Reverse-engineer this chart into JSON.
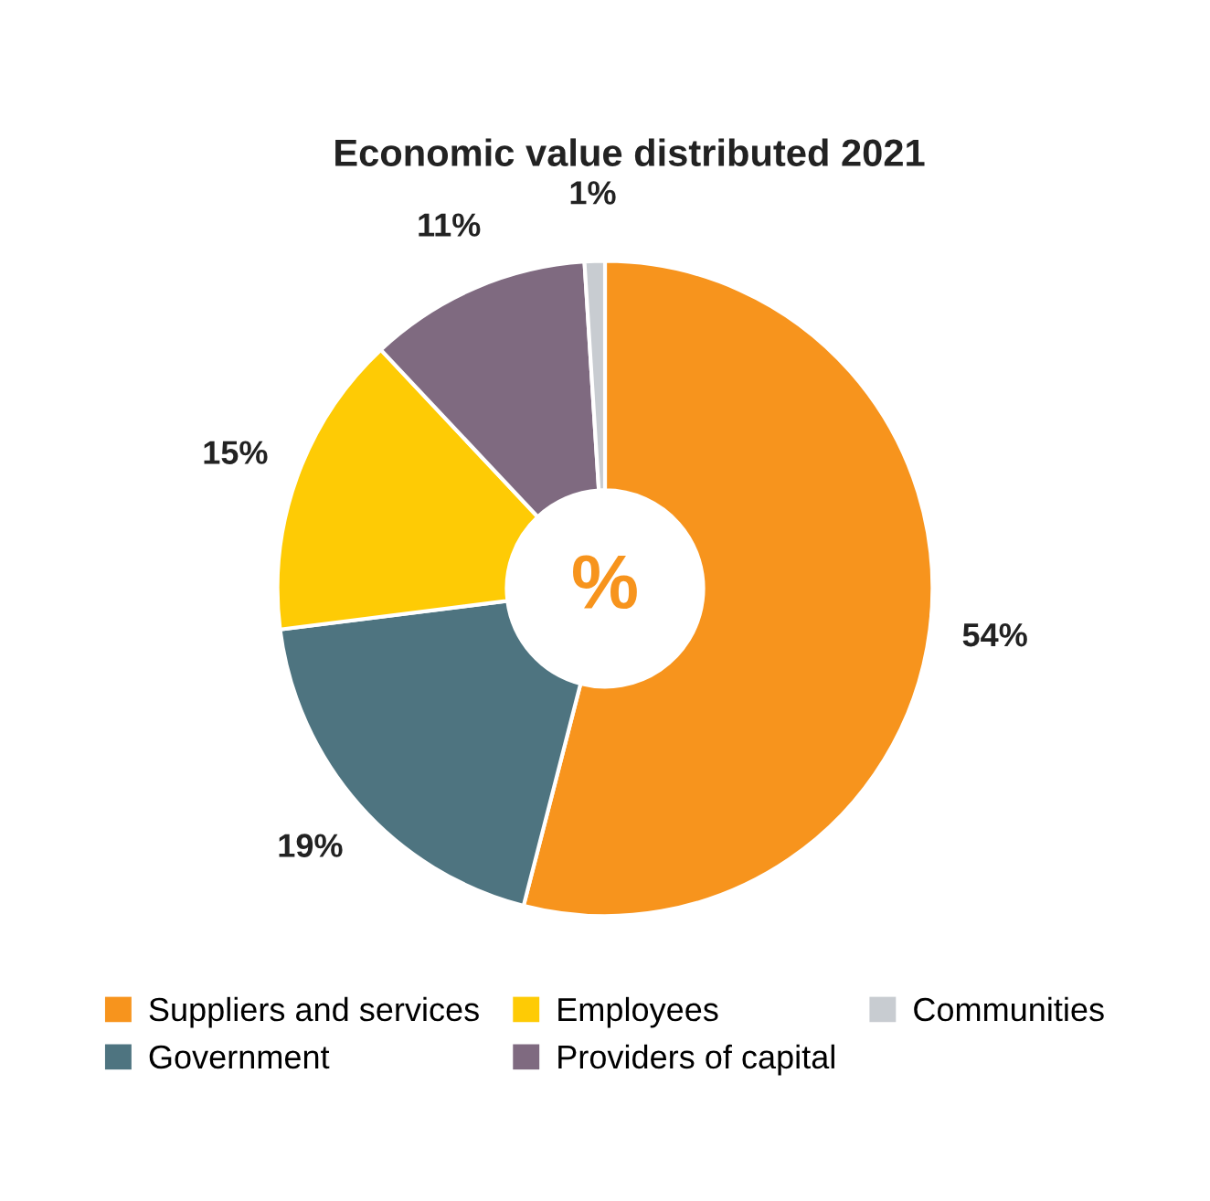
{
  "chart_data": {
    "type": "donut",
    "title": "Economic value distributed 2021",
    "categories": [
      "Suppliers and services",
      "Government",
      "Employees",
      "Providers of capital",
      "Communities"
    ],
    "values": [
      54,
      19,
      15,
      11,
      1
    ],
    "colors": [
      "#f7941d",
      "#4e7480",
      "#fecb05",
      "#7f6a80",
      "#c8ccd1"
    ],
    "value_labels": [
      "54%",
      "19%",
      "15%",
      "11%",
      "1%"
    ],
    "annotations": [
      "%"
    ],
    "legend": "bottom"
  }
}
